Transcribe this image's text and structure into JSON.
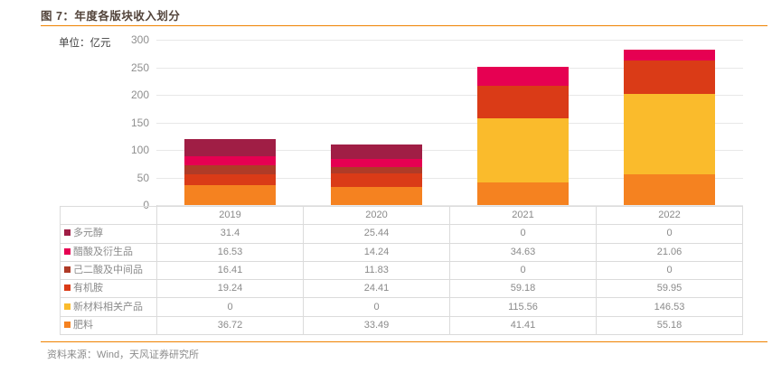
{
  "header": {
    "title": "图 7：年度各版块收入划分"
  },
  "chart": {
    "unit_label": "单位：亿元"
  },
  "chart_data": {
    "type": "bar",
    "stacked": true,
    "title": "年度各版块收入划分",
    "unit": "亿元",
    "categories": [
      "2019",
      "2020",
      "2021",
      "2022"
    ],
    "series": [
      {
        "name": "多元醇",
        "color": "#A01E45",
        "values": [
          31.4,
          25.44,
          0,
          0
        ]
      },
      {
        "name": "醋酸及衍生品",
        "color": "#E60052",
        "values": [
          16.53,
          14.24,
          34.63,
          21.06
        ]
      },
      {
        "name": "己二酸及中间品",
        "color": "#AF3B27",
        "values": [
          16.41,
          11.83,
          0,
          0
        ]
      },
      {
        "name": "有机胺",
        "color": "#DA3B17",
        "values": [
          19.24,
          24.41,
          59.18,
          59.95
        ]
      },
      {
        "name": "新材料相关产品",
        "color": "#FABB2C",
        "values": [
          0,
          0,
          115.56,
          146.53
        ]
      },
      {
        "name": "肥料",
        "color": "#F58220",
        "values": [
          36.72,
          33.49,
          41.41,
          55.18
        ]
      }
    ],
    "stack_order_bottom_to_top": [
      "肥料",
      "新材料相关产品",
      "有机胺",
      "己二酸及中间品",
      "醋酸及衍生品",
      "多元醇"
    ],
    "y_axis": {
      "min": 0,
      "max": 300,
      "ticks": [
        0,
        50,
        100,
        150,
        200,
        250,
        300
      ]
    },
    "grid": true,
    "legend_position": "table-left"
  },
  "footer": {
    "source": "资料来源：Wind，天风证券研究所"
  },
  "colors": {
    "accent_orange": "#EF8200",
    "title_color": "#53443B",
    "gridline": "#E8E8E8",
    "table_border": "#DBDBDB",
    "table_text": "#8A8A8A",
    "axis_text": "#8F8F8F"
  }
}
